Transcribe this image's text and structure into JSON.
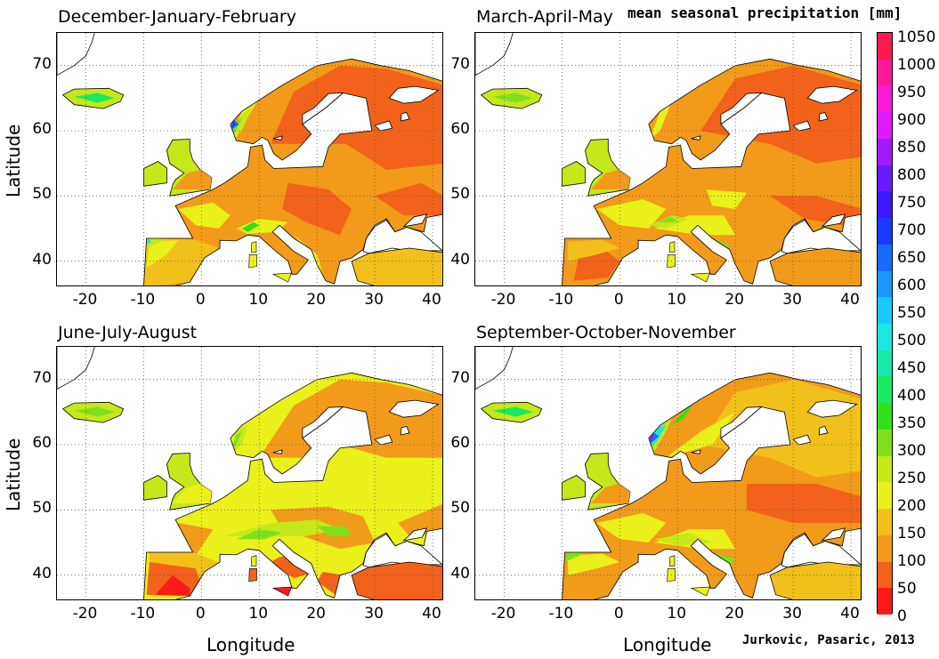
{
  "colorbar": {
    "title": "mean seasonal precipitation [mm]",
    "ticks": [
      "1050",
      "1000",
      "950",
      "900",
      "850",
      "800",
      "750",
      "700",
      "650",
      "600",
      "550",
      "500",
      "450",
      "400",
      "350",
      "300",
      "250",
      "200",
      "150",
      "100",
      "50",
      "0"
    ],
    "colors": [
      "#ff1a4d",
      "#ff1a99",
      "#ff1ad9",
      "#e01aff",
      "#a21aff",
      "#6a1aff",
      "#3b1aff",
      "#1a3bff",
      "#1a6aff",
      "#1a9aff",
      "#1ac8ff",
      "#1ae8e0",
      "#1ae8a8",
      "#1ae860",
      "#32e01a",
      "#7ee01a",
      "#c4e81a",
      "#eaf01a",
      "#f2c01a",
      "#f29a1a",
      "#f2621a",
      "#ff1a1a"
    ]
  },
  "axes": {
    "x_ticks": [
      "-20",
      "-10",
      "0",
      "10",
      "20",
      "30",
      "40"
    ],
    "y_ticks": [
      "70",
      "60",
      "50",
      "40"
    ],
    "xlabel": "Longitude",
    "ylabel": "Latitude"
  },
  "panels": [
    {
      "title": "December-January-February"
    },
    {
      "title": "March-April-May"
    },
    {
      "title": "June-July-August"
    },
    {
      "title": "September-October-November"
    }
  ],
  "credit": "Jurkovic, Pasaric, 2013"
}
